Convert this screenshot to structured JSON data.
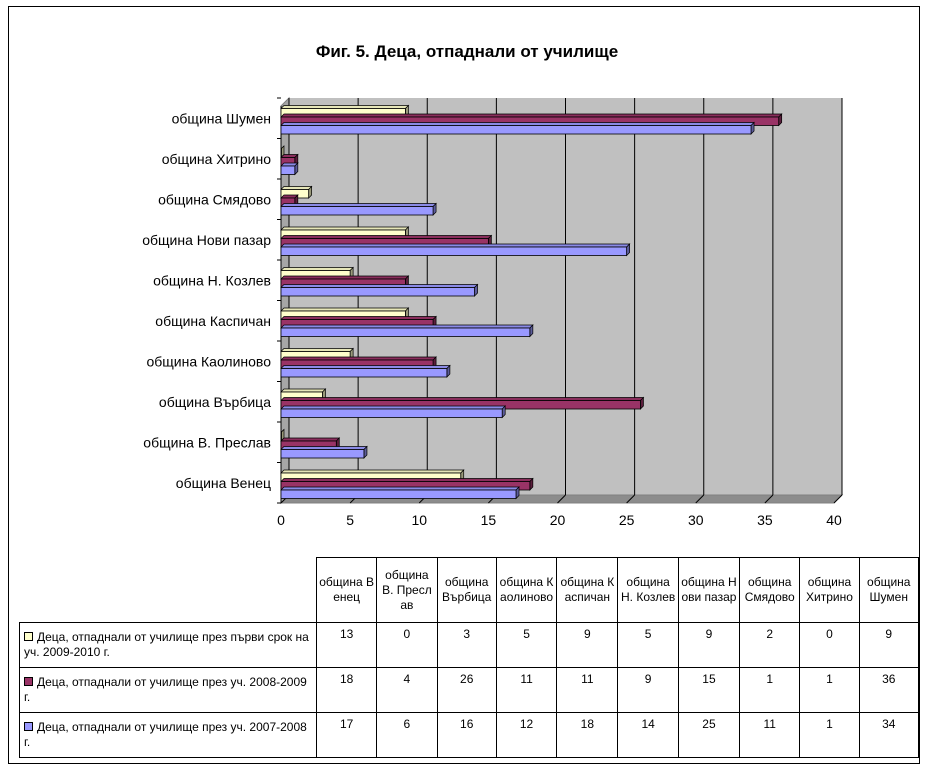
{
  "chart_data": {
    "type": "bar",
    "orientation": "horizontal",
    "title": "Фиг. 5. Деца, отпаднали от училище",
    "categories": [
      "община Венец",
      "община В. Преслав",
      "община Върбица",
      "община Каолиново",
      "община Каспичан",
      "община Н. Козлев",
      "община Нови пазар",
      "община Смядово",
      "община Хитрино",
      "община Шумен"
    ],
    "table_headers": [
      "община Венец",
      "община В. Преслав",
      "община Върбица",
      "община Каолиново",
      "община Каспичан",
      "община Н. Козлев",
      "община Нови пазар",
      "община Смядово",
      "община Хитрино",
      "община Шумен"
    ],
    "series": [
      {
        "name": "Деца, отпаднали от училище през първи срок на уч. 2009-2010 г.",
        "color": "#ffffcc",
        "values": [
          13,
          0,
          3,
          5,
          9,
          5,
          9,
          2,
          0,
          9
        ]
      },
      {
        "name": "Деца, отпаднали от училище през уч. 2008-2009 г.",
        "color": "#993366",
        "values": [
          18,
          4,
          26,
          11,
          11,
          9,
          15,
          1,
          1,
          36
        ]
      },
      {
        "name": "Деца, отпаднали от училище през уч. 2007-2008 г.",
        "color": "#9999ff",
        "values": [
          17,
          6,
          16,
          12,
          18,
          14,
          25,
          11,
          1,
          34
        ]
      }
    ],
    "xlim": [
      0,
      40
    ],
    "xticks": [
      0,
      5,
      10,
      15,
      20,
      25,
      30,
      35,
      40
    ],
    "grid": true,
    "legend": "data-table-below",
    "plot_background": "#c0c0c0"
  }
}
